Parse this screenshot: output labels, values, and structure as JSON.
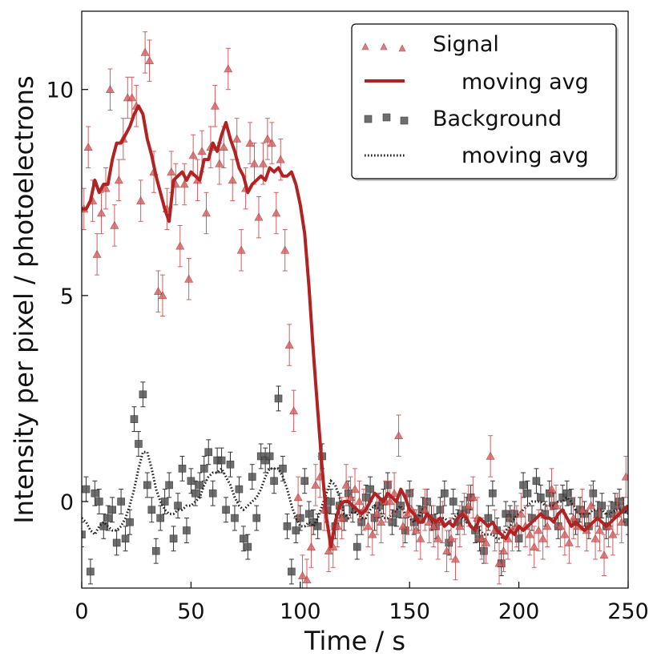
{
  "chart_data": {
    "type": "scatter",
    "title": "",
    "xlabel": "Time / s",
    "ylabel": "Intensity per pixel / photoelectrons",
    "xlim": [
      0,
      250
    ],
    "ylim": [
      -2.1,
      11.9
    ],
    "xticks": [
      0,
      50,
      100,
      150,
      200,
      250
    ],
    "yticks": [
      0,
      5,
      10
    ],
    "xtick_labels": [
      "0",
      "50",
      "100",
      "150",
      "200",
      "250"
    ],
    "ytick_labels": [
      "0",
      "5",
      "10"
    ],
    "legend_position": "top-right",
    "legend": [
      {
        "label": "Signal",
        "kind": "triangle-markers"
      },
      {
        "label": "moving avg",
        "kind": "solid-line"
      },
      {
        "label": "Background",
        "kind": "square-markers"
      },
      {
        "label": "moving avg",
        "kind": "dotted-line"
      }
    ],
    "colors": {
      "signal": "#d06060",
      "signal_avg": "#b22222",
      "background": "#555555",
      "background_avg": "#222222"
    },
    "series": [
      {
        "name": "Signal",
        "kind": "markers",
        "marker": "triangle",
        "x": [
          1,
          3,
          5,
          7,
          9,
          11,
          13,
          15,
          17,
          19,
          21,
          23,
          25,
          27,
          29,
          31,
          33,
          35,
          37,
          39,
          41,
          43,
          45,
          47,
          49,
          51,
          53,
          55,
          57,
          59,
          61,
          63,
          65,
          67,
          69,
          71,
          73,
          75,
          77,
          79,
          81,
          83,
          85,
          87,
          89,
          91,
          93,
          95,
          97,
          99,
          101,
          103,
          105,
          107,
          109,
          111,
          113,
          115,
          117,
          119,
          121,
          123,
          125,
          127,
          129,
          131,
          133,
          135,
          137,
          139,
          141,
          143,
          145,
          147,
          149,
          151,
          153,
          155,
          157,
          159,
          161,
          163,
          165,
          167,
          169,
          171,
          173,
          175,
          177,
          179,
          181,
          183,
          185,
          187,
          189,
          191,
          193,
          195,
          197,
          199,
          201,
          203,
          205,
          207,
          209,
          211,
          213,
          215,
          217,
          219,
          221,
          223,
          225,
          227,
          229,
          231,
          233,
          235,
          237,
          239,
          241,
          243,
          245,
          247,
          249
        ],
        "y": [
          7.1,
          8.6,
          7.3,
          6.0,
          7.0,
          7.6,
          10.0,
          6.7,
          7.8,
          8.8,
          9.8,
          9.8,
          9.6,
          7.3,
          10.9,
          10.7,
          8.0,
          5.1,
          5.0,
          7.1,
          8.0,
          7.7,
          6.2,
          7.7,
          5.4,
          8.4,
          7.8,
          8.5,
          7.0,
          8.6,
          9.6,
          8.2,
          8.6,
          10.5,
          7.8,
          8.8,
          6.1,
          7.6,
          8.7,
          8.2,
          6.9,
          8.2,
          8.8,
          8.7,
          7.0,
          8.3,
          6.1,
          3.8,
          2.2,
          0.1,
          -1.8,
          -1.9,
          -1.1,
          0.4,
          0.6,
          -0.2,
          -1.2,
          -1.1,
          -0.6,
          -0.4,
          0.4,
          0.1,
          0.3,
          0.0,
          -0.2,
          -0.6,
          -0.8,
          -0.3,
          -0.5,
          0.0,
          0.0,
          0.2,
          1.6,
          -0.6,
          -0.3,
          -0.2,
          -0.7,
          -0.9,
          -0.2,
          -0.5,
          -0.6,
          -0.9,
          -0.5,
          -1.2,
          -0.9,
          -1.4,
          -0.6,
          -0.3,
          -0.1,
          0.1,
          -0.4,
          -0.9,
          -1.0,
          1.1,
          -0.7,
          -1.5,
          -1.2,
          -0.9,
          -0.7,
          -0.6,
          -0.3,
          -0.6,
          -0.8,
          -1.1,
          -0.7,
          -0.9,
          -0.6,
          0.3,
          -0.1,
          -0.6,
          -0.8,
          -1.0,
          -0.4,
          -0.6,
          -0.2,
          -0.7,
          -0.1,
          -0.9,
          -0.7,
          -1.3,
          -0.6,
          -0.8,
          -0.3,
          -0.5,
          0.6
        ],
        "error": 0.5
      },
      {
        "name": "moving avg",
        "kind": "line",
        "style": "solid",
        "x": [
          0,
          2,
          4,
          6,
          8,
          10,
          12,
          14,
          16,
          18,
          20,
          22,
          24,
          26,
          28,
          30,
          32,
          34,
          36,
          38,
          40,
          42,
          44,
          46,
          48,
          50,
          52,
          54,
          56,
          58,
          60,
          62,
          64,
          66,
          68,
          70,
          72,
          74,
          76,
          78,
          80,
          82,
          84,
          86,
          88,
          90,
          92,
          94,
          96,
          98,
          100,
          102,
          104,
          106,
          108,
          110,
          112,
          114,
          116,
          118,
          120,
          122,
          124,
          126,
          128,
          130,
          132,
          134,
          136,
          138,
          140,
          142,
          144,
          146,
          148,
          150,
          152,
          154,
          156,
          158,
          160,
          162,
          164,
          166,
          168,
          170,
          172,
          174,
          176,
          178,
          180,
          182,
          184,
          186,
          188,
          190,
          192,
          194,
          196,
          198,
          200,
          202,
          204,
          206,
          208,
          210,
          212,
          214,
          216,
          218,
          220,
          222,
          224,
          226,
          228,
          230,
          232,
          234,
          236,
          238,
          240,
          242,
          244,
          246,
          248,
          250
        ],
        "y": [
          7.1,
          7.1,
          7.3,
          7.8,
          7.5,
          7.7,
          7.7,
          8.3,
          8.7,
          8.7,
          8.9,
          9.1,
          9.4,
          9.6,
          9.4,
          8.8,
          8.4,
          7.9,
          7.5,
          7.1,
          6.8,
          7.8,
          7.9,
          8.0,
          7.8,
          8.0,
          7.9,
          7.8,
          8.3,
          8.3,
          8.7,
          8.5,
          8.9,
          9.2,
          8.8,
          8.5,
          8.1,
          7.9,
          7.5,
          7.7,
          7.8,
          7.9,
          7.8,
          8.1,
          8.0,
          8.1,
          7.9,
          7.9,
          8.0,
          7.7,
          7.2,
          6.5,
          5.2,
          3.6,
          2.2,
          0.8,
          -0.4,
          -1.1,
          -0.5,
          -0.1,
          0.0,
          0.0,
          -0.1,
          -0.2,
          -0.3,
          -0.2,
          0.0,
          0.2,
          0.1,
          0.0,
          0.2,
          0.1,
          0.0,
          0.3,
          0.1,
          -0.2,
          -0.3,
          -0.5,
          -0.5,
          -0.3,
          -0.4,
          -0.5,
          -0.4,
          -0.6,
          -0.5,
          -0.6,
          -0.4,
          -0.3,
          -0.4,
          -0.6,
          -0.7,
          -0.4,
          -0.5,
          -0.6,
          -0.5,
          -0.7,
          -0.8,
          -0.9,
          -0.7,
          -0.8,
          -0.6,
          -0.7,
          -0.6,
          -0.5,
          -0.4,
          -0.3,
          -0.4,
          -0.4,
          -0.5,
          -0.3,
          -0.2,
          -0.4,
          -0.6,
          -0.5,
          -0.6,
          -0.7,
          -0.6,
          -0.5,
          -0.4,
          -0.5,
          -0.6,
          -0.5,
          -0.4,
          -0.3,
          -0.2,
          -0.1
        ]
      },
      {
        "name": "Background",
        "kind": "markers",
        "marker": "square",
        "x": [
          0,
          2,
          4,
          6,
          8,
          10,
          12,
          14,
          16,
          18,
          20,
          22,
          24,
          26,
          28,
          30,
          32,
          34,
          36,
          38,
          40,
          42,
          44,
          46,
          48,
          50,
          52,
          54,
          56,
          58,
          60,
          62,
          64,
          66,
          68,
          70,
          72,
          74,
          76,
          78,
          80,
          82,
          84,
          86,
          88,
          90,
          92,
          94,
          96,
          98,
          100,
          102,
          104,
          106,
          108,
          110,
          112,
          114,
          116,
          118,
          120,
          122,
          124,
          126,
          128,
          130,
          132,
          134,
          136,
          138,
          140,
          142,
          144,
          146,
          148,
          150,
          152,
          154,
          156,
          158,
          160,
          162,
          164,
          166,
          168,
          170,
          172,
          174,
          176,
          178,
          180,
          182,
          184,
          186,
          188,
          190,
          192,
          194,
          196,
          198,
          200,
          202,
          204,
          206,
          208,
          210,
          212,
          214,
          216,
          218,
          220,
          222,
          224,
          226,
          228,
          230,
          232,
          234,
          236,
          238,
          240,
          242,
          244,
          246,
          248,
          250
        ],
        "y": [
          -0.8,
          0.3,
          -1.7,
          0.2,
          0.0,
          -0.6,
          -0.4,
          -0.2,
          -1.0,
          0.0,
          -0.9,
          -0.5,
          2.0,
          1.4,
          2.6,
          0.4,
          -0.2,
          -1.2,
          -0.4,
          0.0,
          0.4,
          -0.9,
          -0.1,
          0.8,
          -0.7,
          0.5,
          0.2,
          0.4,
          0.8,
          1.2,
          0.2,
          1.0,
          1.0,
          -0.2,
          0.9,
          -0.4,
          0.3,
          -0.9,
          -1.1,
          0.6,
          -0.4,
          1.1,
          1.0,
          1.1,
          0.5,
          2.5,
          0.8,
          -0.6,
          -1.7,
          -0.7,
          -0.4,
          0.5,
          -0.3,
          -0.5,
          -0.6,
          1.1,
          -0.2,
          0.0,
          -0.6,
          -0.1,
          -0.4,
          0.2,
          -0.2,
          -1.1,
          -0.5,
          0.1,
          0.3,
          -0.4,
          -0.1,
          0.0,
          0.4,
          -0.5,
          -0.3,
          -0.1,
          -0.7,
          0.2,
          -0.5,
          -0.4,
          -0.2,
          0.0,
          -0.4,
          -0.6,
          -0.2,
          0.2,
          -1.0,
          0.0,
          -0.5,
          -0.3,
          -0.2,
          0.1,
          -0.7,
          -0.9,
          -1.2,
          -0.4,
          0.2,
          -0.7,
          -1.5,
          -0.3,
          -0.4,
          -0.3,
          -0.9,
          0.4,
          0.2,
          -0.4,
          0.5,
          0.1,
          -0.3,
          0.2,
          -0.1,
          -0.6,
          0.1,
          0.2,
          0.0,
          -0.5,
          -0.2,
          -0.3,
          -0.6,
          0.2,
          -0.3,
          -0.1,
          -0.6,
          -0.3,
          -0.1,
          0.0,
          -0.2,
          -0.5
        ],
        "error": 0.3
      },
      {
        "name": "moving avg",
        "kind": "line",
        "style": "dotted",
        "x": [
          0,
          2,
          4,
          6,
          8,
          10,
          12,
          14,
          16,
          18,
          20,
          22,
          24,
          26,
          28,
          30,
          32,
          34,
          36,
          38,
          40,
          42,
          44,
          46,
          48,
          50,
          52,
          54,
          56,
          58,
          60,
          62,
          64,
          66,
          68,
          70,
          72,
          74,
          76,
          78,
          80,
          82,
          84,
          86,
          88,
          90,
          92,
          94,
          96,
          98,
          100,
          102,
          104,
          106,
          108,
          110,
          112,
          114,
          116,
          118,
          120,
          122,
          124,
          126,
          128,
          130,
          132,
          134,
          136,
          138,
          140,
          142,
          144,
          146,
          148,
          150,
          152,
          154,
          156,
          158,
          160,
          162,
          164,
          166,
          168,
          170,
          172,
          174,
          176,
          178,
          180,
          182,
          184,
          186,
          188,
          190,
          192,
          194,
          196,
          198,
          200,
          202,
          204,
          206,
          208,
          210,
          212,
          214,
          216,
          218,
          220,
          222,
          224,
          226,
          228,
          230,
          232,
          234,
          236,
          238,
          240,
          242,
          244,
          246,
          248,
          250
        ],
        "y": [
          -0.4,
          -0.5,
          -0.7,
          -0.8,
          -0.6,
          -0.5,
          -0.6,
          -0.7,
          -0.7,
          -0.6,
          -0.4,
          -0.1,
          0.3,
          0.8,
          1.2,
          1.2,
          0.8,
          0.3,
          0.0,
          -0.2,
          -0.3,
          -0.3,
          -0.2,
          -0.2,
          -0.1,
          -0.1,
          0.0,
          0.1,
          0.4,
          0.6,
          0.7,
          0.7,
          0.8,
          0.6,
          0.4,
          0.1,
          -0.1,
          -0.2,
          -0.1,
          0.0,
          0.1,
          0.3,
          0.6,
          0.8,
          0.8,
          0.8,
          0.6,
          0.3,
          -0.1,
          -0.4,
          -0.6,
          -0.6,
          -0.5,
          -0.6,
          -0.4,
          -0.1,
          0.2,
          0.5,
          0.4,
          0.1,
          -0.3,
          -0.4,
          -0.2,
          -0.3,
          -0.4,
          -0.4,
          -0.2,
          -0.1,
          -0.2,
          -0.4,
          -0.4,
          -0.3,
          -0.2,
          -0.1,
          -0.3,
          -0.4,
          -0.5,
          -0.4,
          -0.2,
          -0.3,
          -0.5,
          -0.5,
          -0.4,
          -0.4,
          -0.5,
          -0.4,
          -0.3,
          -0.4,
          -0.5,
          -0.6,
          -0.6,
          -0.7,
          -0.8,
          -0.8,
          -0.8,
          -0.9,
          -0.9,
          -0.7,
          -0.6,
          -0.4,
          -0.3,
          -0.2,
          -0.1,
          0.0,
          0.0,
          0.0,
          -0.1,
          -0.1,
          -0.1,
          0.0,
          0.0,
          0.1,
          0.0,
          -0.2,
          -0.3,
          -0.3,
          -0.3,
          -0.2,
          -0.2,
          -0.2,
          -0.3,
          -0.3,
          -0.2,
          -0.2,
          -0.2,
          -0.3
        ]
      }
    ]
  }
}
